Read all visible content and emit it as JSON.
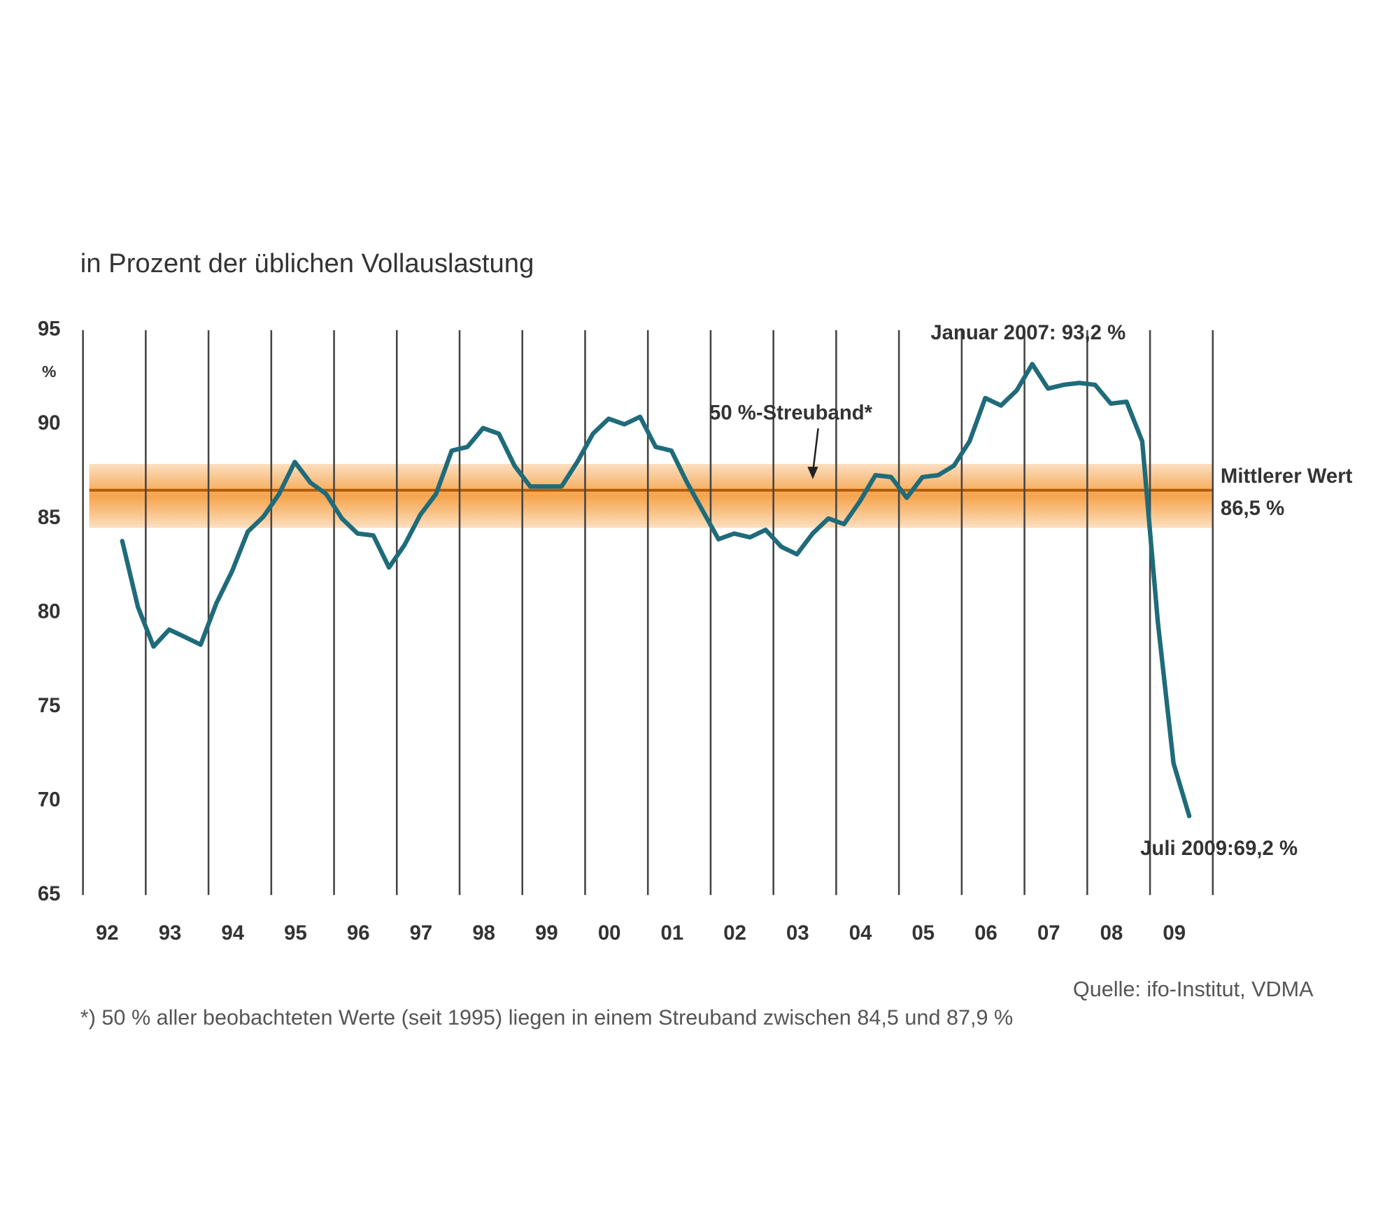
{
  "chart_data": {
    "type": "line",
    "subtitle": "in Prozent der üblichen Vollauslastung",
    "y_unit": "%",
    "categories": [
      "92",
      "93",
      "94",
      "95",
      "96",
      "97",
      "98",
      "99",
      "00",
      "01",
      "02",
      "03",
      "04",
      "05",
      "06",
      "07",
      "08",
      "09"
    ],
    "series": [
      {
        "color": "#1f6b7a",
        "values": [
          [
            null,
            null,
            83.8,
            80.3
          ],
          [
            78.2,
            79.1,
            78.7,
            78.3
          ],
          [
            80.5,
            82.2,
            84.3,
            85.1
          ],
          [
            86.3,
            88.0,
            86.9,
            86.3
          ],
          [
            85.0,
            84.2,
            84.1,
            82.4
          ],
          [
            83.6,
            85.2,
            86.3,
            88.6
          ],
          [
            88.8,
            89.8,
            89.5,
            87.8
          ],
          [
            86.7,
            86.7,
            86.7,
            88.0
          ],
          [
            89.5,
            90.3,
            90.0,
            90.4
          ],
          [
            88.8,
            88.6,
            86.9,
            85.4
          ],
          [
            83.9,
            84.2,
            84.0,
            84.4
          ],
          [
            83.5,
            83.1,
            84.2,
            85.0
          ],
          [
            84.7,
            85.9,
            87.3,
            87.2
          ],
          [
            86.1,
            87.2,
            87.3,
            87.8
          ],
          [
            89.1,
            91.4,
            91.0,
            91.8
          ],
          [
            93.2,
            91.9,
            92.1,
            92.2
          ],
          [
            92.1,
            91.1,
            91.2,
            89.1
          ],
          [
            79.5,
            72.0,
            69.2,
            null
          ]
        ]
      }
    ],
    "band": [
      84.5,
      87.9
    ],
    "band_color": "#f6a44c",
    "mean": 86.5,
    "mean_color": "#b35a00",
    "ylim": [
      65,
      95
    ],
    "yticks": [
      65,
      70,
      75,
      80,
      85,
      90,
      95
    ],
    "annotations": {
      "peak": "Januar 2007: 93,2 %",
      "last": "Juli 2009:69,2 %",
      "band": "50 %-Streuband*",
      "mean_label": "Mittlerer Wert",
      "mean_value": "86,5 %"
    },
    "source": "Quelle: ifo-Institut, VDMA",
    "footnote": "*) 50 % aller beobachteten Werte (seit 1995) liegen in einem Streuband zwischen 84,5 und 87,9 %"
  }
}
